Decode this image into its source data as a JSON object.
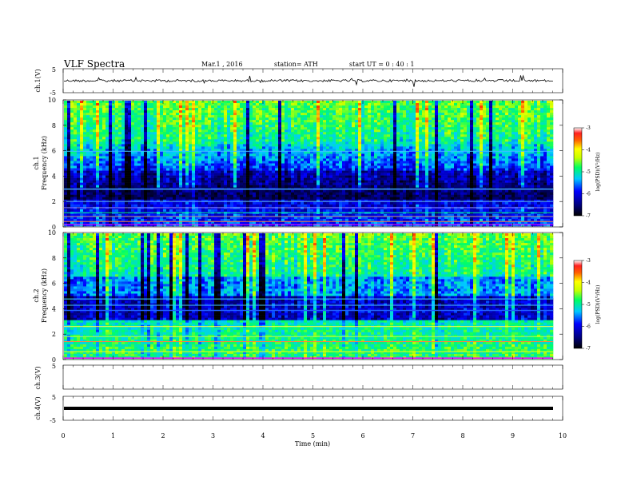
{
  "header": {
    "title": "VLF  Spectra",
    "date": "Mar.1  , 2016",
    "station": "station= ATH",
    "start": "start  UT =   0 : 40 : 1"
  },
  "chart_data": [
    {
      "type": "line",
      "panel": "ch1-waveform",
      "ylabel": "ch.1(V)",
      "ylim": [
        -5,
        5
      ],
      "yticks": [
        5,
        -5
      ],
      "xlim": [
        0,
        10
      ],
      "series": [
        {
          "x": [
            0,
            9.8
          ],
          "baseline": -1.3
        }
      ]
    },
    {
      "type": "heatmap",
      "panel": "ch1-spectrogram",
      "ylabel": "ch.1\nFrequency (kHz)",
      "ylabel_lines": [
        "ch.1",
        "Frequency  (kHz)"
      ],
      "ylim": [
        0,
        10
      ],
      "yticks": [
        0,
        2,
        4,
        6,
        8,
        10
      ],
      "xlim": [
        0,
        9.8
      ],
      "colorbar": {
        "label": "log(PSD)(V²/Hz)",
        "range": [
          -7,
          -3
        ],
        "ticks": [
          -3,
          -4,
          -5,
          -6,
          -7
        ]
      }
    },
    {
      "type": "heatmap",
      "panel": "ch2-spectrogram",
      "ylabel_lines": [
        "ch.2",
        "Frequency  (kHz)"
      ],
      "ylim": [
        0,
        10
      ],
      "yticks": [
        0,
        2,
        4,
        6,
        8,
        10
      ],
      "xlim": [
        0,
        9.8
      ],
      "colorbar": {
        "label": "log(PSD)(V²/Hz)",
        "range": [
          -7,
          -3
        ],
        "ticks": [
          -3,
          -4,
          -5,
          -6,
          -7
        ]
      }
    },
    {
      "type": "line",
      "panel": "ch3-waveform",
      "ylabel": "ch.3(V)",
      "ylim": [
        -5,
        5
      ],
      "yticks": [
        5
      ],
      "xlim": [
        0,
        10
      ],
      "series": []
    },
    {
      "type": "line",
      "panel": "ch4-waveform",
      "ylabel": "ch.4(V)",
      "ylim": [
        -5,
        5
      ],
      "yticks": [
        5,
        -5
      ],
      "xlim": [
        0,
        10
      ],
      "series": [
        {
          "x": [
            0,
            9.8
          ],
          "y": [
            -1,
            -1
          ]
        }
      ]
    }
  ],
  "xaxis": {
    "label": "Time  (min)",
    "ticks": [
      "0",
      "1",
      "2",
      "3",
      "4",
      "5",
      "6",
      "7",
      "8",
      "9",
      "10"
    ]
  },
  "colors": {
    "colormap": [
      "#000000",
      "#000060",
      "#0000ff",
      "#00ccff",
      "#00ff66",
      "#bbff00",
      "#ffff00",
      "#ff6600",
      "#ff0000",
      "#ffffff"
    ],
    "magenta_line": "#ff00ff"
  }
}
